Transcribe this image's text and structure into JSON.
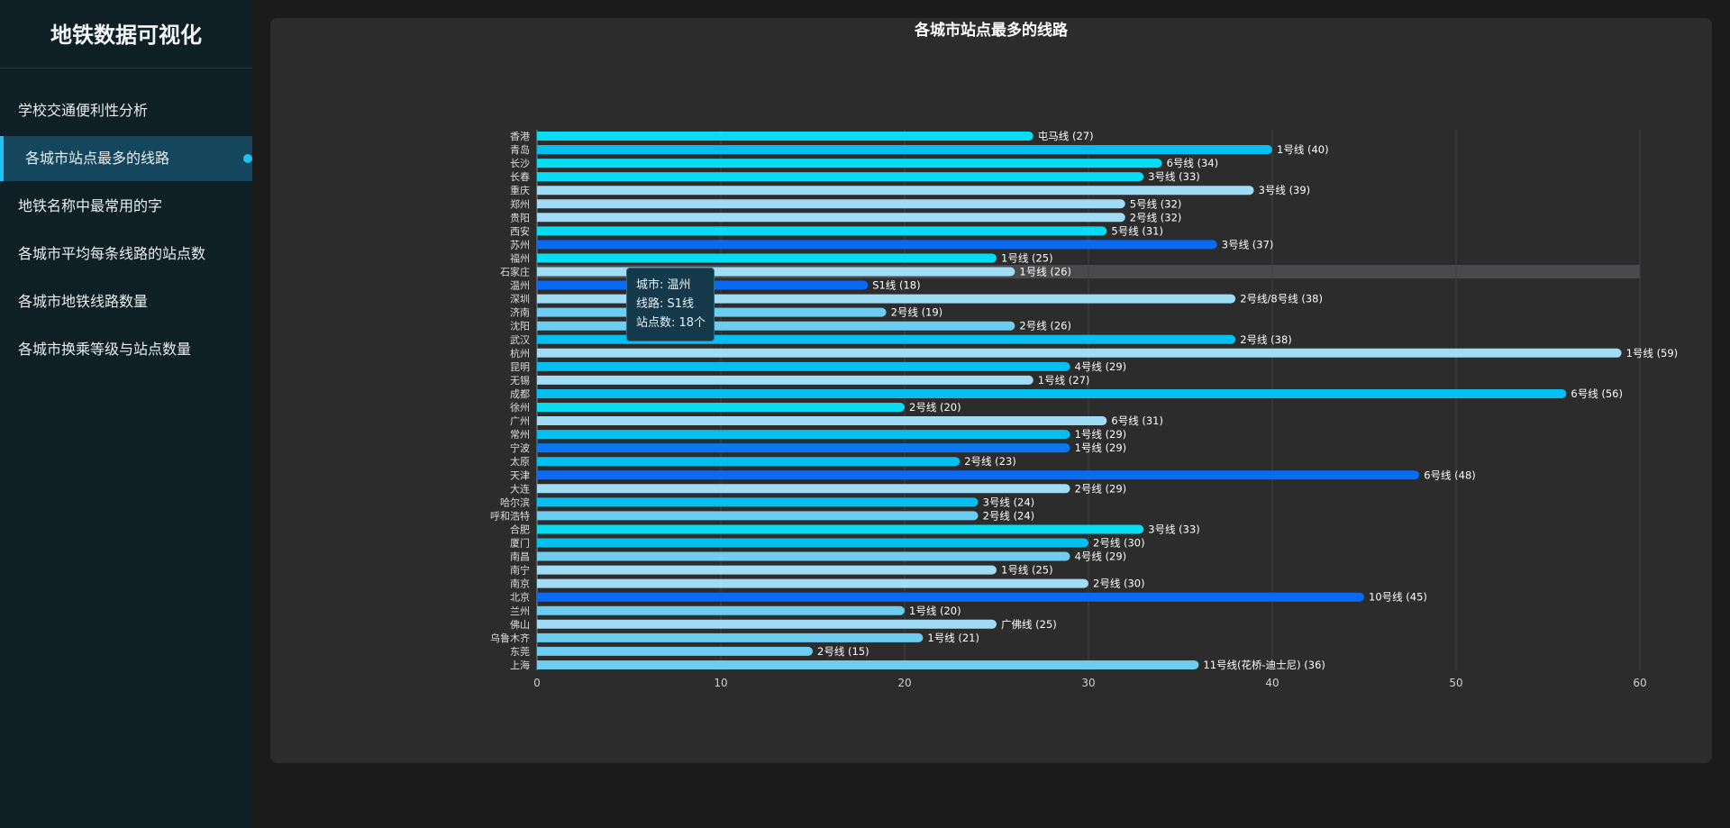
{
  "app": {
    "title": "地铁数据可视化",
    "nav": [
      {
        "label": "学校交通便利性分析",
        "active": false
      },
      {
        "label": "各城市站点最多的线路",
        "active": true
      },
      {
        "label": "地铁名称中最常用的字",
        "active": false
      },
      {
        "label": "各城市平均每条线路的站点数",
        "active": false
      },
      {
        "label": "各城市地铁线路数量",
        "active": false
      },
      {
        "label": "各城市换乘等级与站点数量",
        "active": false
      }
    ]
  },
  "tooltip": {
    "city_line": "城市: 温州",
    "route_line": "线路: S1线",
    "count_line": "站点数: 18个"
  },
  "chart_data": {
    "type": "bar",
    "orientation": "horizontal",
    "title": "各城市站点最多的线路",
    "xlim": [
      0,
      60
    ],
    "x_ticks": [
      0,
      10,
      20,
      30,
      40,
      50,
      60
    ],
    "grid": true,
    "highlight_index": 10,
    "colors": {
      "cyan": "#07dcf2",
      "sky": "#05bff0",
      "blue": "#0a78f2",
      "royal": "#096bf4",
      "pale": "#a0dcf5",
      "light": "#6ccdf0"
    },
    "bars": [
      {
        "city": "香港",
        "line": "屯马线",
        "value": 27,
        "color": "cyan"
      },
      {
        "city": "青岛",
        "line": "1号线",
        "value": 40,
        "color": "sky"
      },
      {
        "city": "长沙",
        "line": "6号线",
        "value": 34,
        "color": "cyan"
      },
      {
        "city": "长春",
        "line": "3号线",
        "value": 33,
        "color": "cyan"
      },
      {
        "city": "重庆",
        "line": "3号线",
        "value": 39,
        "color": "pale"
      },
      {
        "city": "郑州",
        "line": "5号线",
        "value": 32,
        "color": "pale"
      },
      {
        "city": "贵阳",
        "line": "2号线",
        "value": 32,
        "color": "pale"
      },
      {
        "city": "西安",
        "line": "5号线",
        "value": 31,
        "color": "cyan"
      },
      {
        "city": "苏州",
        "line": "3号线",
        "value": 37,
        "color": "royal"
      },
      {
        "city": "福州",
        "line": "1号线",
        "value": 25,
        "color": "cyan"
      },
      {
        "city": "石家庄",
        "line": "1号线",
        "value": 26,
        "color": "pale"
      },
      {
        "city": "温州",
        "line": "S1线",
        "value": 18,
        "color": "royal"
      },
      {
        "city": "深圳",
        "line": "2号线/8号线",
        "value": 38,
        "color": "pale"
      },
      {
        "city": "济南",
        "line": "2号线",
        "value": 19,
        "color": "light"
      },
      {
        "city": "沈阳",
        "line": "2号线",
        "value": 26,
        "color": "light"
      },
      {
        "city": "武汉",
        "line": "2号线",
        "value": 38,
        "color": "sky"
      },
      {
        "city": "杭州",
        "line": "1号线",
        "value": 59,
        "color": "pale"
      },
      {
        "city": "昆明",
        "line": "4号线",
        "value": 29,
        "color": "sky"
      },
      {
        "city": "无锡",
        "line": "1号线",
        "value": 27,
        "color": "pale"
      },
      {
        "city": "成都",
        "line": "6号线",
        "value": 56,
        "color": "sky"
      },
      {
        "city": "徐州",
        "line": "2号线",
        "value": 20,
        "color": "cyan"
      },
      {
        "city": "广州",
        "line": "6号线",
        "value": 31,
        "color": "pale"
      },
      {
        "city": "常州",
        "line": "1号线",
        "value": 29,
        "color": "sky"
      },
      {
        "city": "宁波",
        "line": "1号线",
        "value": 29,
        "color": "blue"
      },
      {
        "city": "太原",
        "line": "2号线",
        "value": 23,
        "color": "sky"
      },
      {
        "city": "天津",
        "line": "6号线",
        "value": 48,
        "color": "royal"
      },
      {
        "city": "大连",
        "line": "2号线",
        "value": 29,
        "color": "pale"
      },
      {
        "city": "哈尔滨",
        "line": "3号线",
        "value": 24,
        "color": "sky"
      },
      {
        "city": "呼和浩特",
        "line": "2号线",
        "value": 24,
        "color": "light"
      },
      {
        "city": "合肥",
        "line": "3号线",
        "value": 33,
        "color": "cyan"
      },
      {
        "city": "厦门",
        "line": "2号线",
        "value": 30,
        "color": "sky"
      },
      {
        "city": "南昌",
        "line": "4号线",
        "value": 29,
        "color": "light"
      },
      {
        "city": "南宁",
        "line": "1号线",
        "value": 25,
        "color": "pale"
      },
      {
        "city": "南京",
        "line": "2号线",
        "value": 30,
        "color": "pale"
      },
      {
        "city": "北京",
        "line": "10号线",
        "value": 45,
        "color": "royal"
      },
      {
        "city": "兰州",
        "line": "1号线",
        "value": 20,
        "color": "light"
      },
      {
        "city": "佛山",
        "line": "广佛线",
        "value": 25,
        "color": "pale"
      },
      {
        "city": "乌鲁木齐",
        "line": "1号线",
        "value": 21,
        "color": "light"
      },
      {
        "city": "东莞",
        "line": "2号线",
        "value": 15,
        "color": "light"
      },
      {
        "city": "上海",
        "line": "11号线(花桥-迪士尼)",
        "value": 36,
        "color": "light"
      }
    ]
  }
}
